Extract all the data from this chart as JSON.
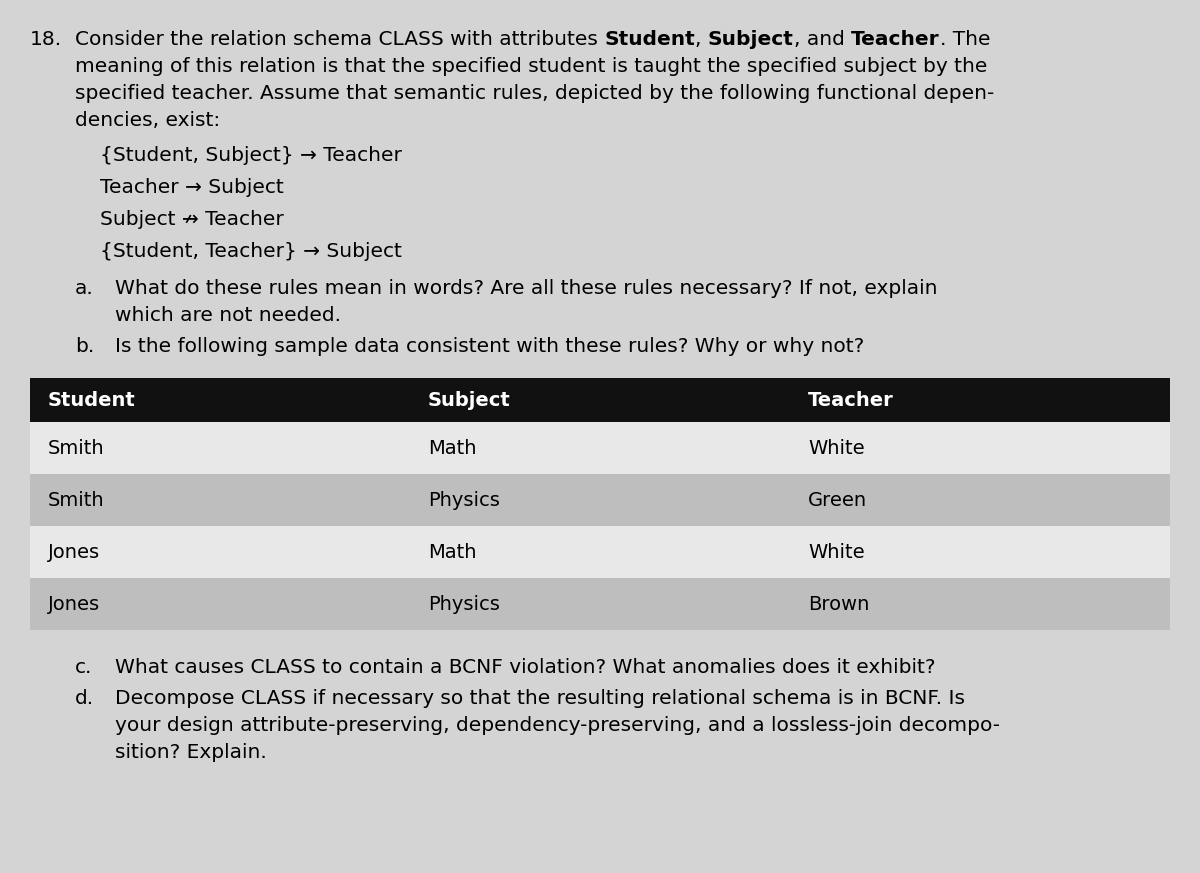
{
  "background_color": "#d4d4d4",
  "table_header_bg": "#111111",
  "table_header_fg": "#ffffff",
  "table_row_colors": [
    "#e8e8e8",
    "#bebebe",
    "#e8e8e8",
    "#bebebe"
  ],
  "table_border_color": "#555555",
  "font_size_body": 14.5,
  "font_size_table": 14.0,
  "fd_lines": [
    "{Student, Subject} → Teacher",
    "Teacher → Subject",
    "Subject ↛ Teacher",
    "{Student, Teacher} → Subject"
  ],
  "table_headers": [
    "Student",
    "Subject",
    "Teacher"
  ],
  "table_rows": [
    [
      "Smith",
      "Math",
      "White"
    ],
    [
      "Smith",
      "Physics",
      "Green"
    ],
    [
      "Jones",
      "Math",
      "White"
    ],
    [
      "Jones",
      "Physics",
      "Brown"
    ]
  ]
}
